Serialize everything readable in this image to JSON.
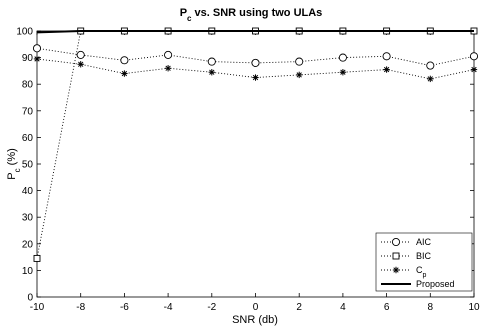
{
  "chart_data": {
    "type": "line",
    "title": {
      "main": "P",
      "sub": "c",
      "rest": " vs. SNR using two ULAs"
    },
    "xlabel": "SNR (db)",
    "ylabel": {
      "main": "P",
      "sub": "c",
      "rest": " (%)"
    },
    "xlim": [
      -10,
      10
    ],
    "ylim": [
      0,
      100
    ],
    "x_ticks": [
      "-10",
      "-8",
      "-6",
      "-4",
      "-2",
      "0",
      "2",
      "4",
      "6",
      "8",
      "10"
    ],
    "y_ticks": [
      "0",
      "10",
      "20",
      "30",
      "40",
      "50",
      "60",
      "70",
      "80",
      "90",
      "100"
    ],
    "grid": false,
    "legend_position": "bottom-right",
    "x": [
      -10,
      -8,
      -6,
      -4,
      -2,
      0,
      2,
      4,
      6,
      8,
      10
    ],
    "series": [
      {
        "name": "AIC",
        "legend_text": "AIC",
        "marker": "circle",
        "line_style": "dotted",
        "values": [
          93.5,
          91,
          89,
          91,
          88.5,
          88,
          88.5,
          90,
          90.5,
          87,
          90.5
        ]
      },
      {
        "name": "BIC",
        "legend_text": "BIC",
        "marker": "square",
        "line_style": "dotted",
        "values": [
          14.5,
          100,
          100,
          100,
          100,
          100,
          100,
          100,
          100,
          100,
          100
        ]
      },
      {
        "name": "Cp",
        "legend_text": "C",
        "legend_sub": "p",
        "marker": "asterisk",
        "line_style": "dotted",
        "values": [
          89.5,
          87.5,
          84,
          86,
          84.5,
          82.5,
          83.5,
          84.5,
          85.5,
          82,
          85.5
        ]
      },
      {
        "name": "Proposed",
        "legend_text": "Proposed",
        "marker": "none",
        "line_style": "solid",
        "values": [
          99.5,
          100,
          100,
          100,
          100,
          100,
          100,
          100,
          100,
          100,
          100
        ]
      }
    ]
  }
}
